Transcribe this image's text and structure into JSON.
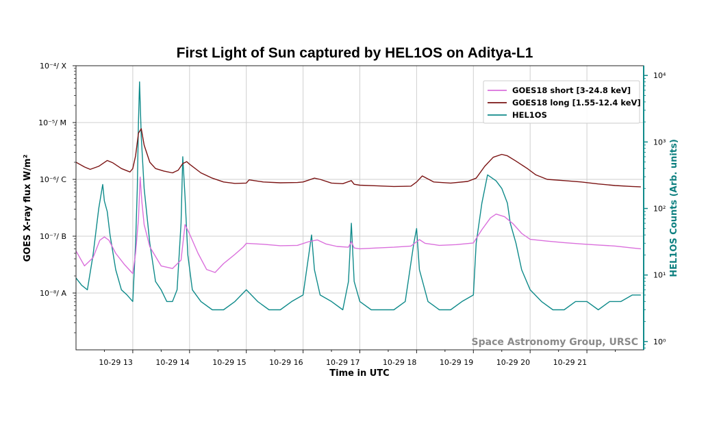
{
  "chart_data": {
    "type": "line",
    "title": "First Light of Sun captured by HEL1OS on Aditya-L1",
    "xlabel": "Time in UTC",
    "ylabel_left": "GOES X-ray flux W/m²",
    "ylabel_right": "HEL1OS Counts (Arb. units)",
    "xlim": [
      12.0,
      22.0
    ],
    "ylim_left": [
      1e-09,
      0.0001
    ],
    "ylim_right": [
      0.75,
      14000
    ],
    "x_scale": "linear",
    "y_scale_left": "log",
    "y_scale_right": "log",
    "grid": true,
    "legend_position": "top-right",
    "x_ticks": [
      {
        "value": 13,
        "label": "10-29 13"
      },
      {
        "value": 14,
        "label": "10-29 14"
      },
      {
        "value": 15,
        "label": "10-29 15"
      },
      {
        "value": 16,
        "label": "10-29 16"
      },
      {
        "value": 17,
        "label": "10-29 17"
      },
      {
        "value": 18,
        "label": "10-29 18"
      },
      {
        "value": 19,
        "label": "10-29 19"
      },
      {
        "value": 20,
        "label": "10-29 20"
      },
      {
        "value": 21,
        "label": "10-29 21"
      }
    ],
    "y_ticks_left": [
      {
        "value": 0.0001,
        "label": "10⁻⁴/ X"
      },
      {
        "value": 1e-05,
        "label": "10⁻⁵/ M"
      },
      {
        "value": 1e-06,
        "label": "10⁻⁶/ C"
      },
      {
        "value": 1e-07,
        "label": "10⁻⁷/ B"
      },
      {
        "value": 1e-08,
        "label": "10⁻⁸/ A"
      }
    ],
    "y_ticks_right": [
      {
        "value": 1,
        "label": "10⁰"
      },
      {
        "value": 10,
        "label": "10¹"
      },
      {
        "value": 100,
        "label": "10²"
      },
      {
        "value": 1000,
        "label": "10³"
      },
      {
        "value": 10000,
        "label": "10⁴"
      }
    ],
    "series": [
      {
        "name": "GOES18 short  [3-24.8 keV]",
        "axis": "left",
        "color": "#da6fdc",
        "x": [
          12.0,
          12.15,
          12.3,
          12.42,
          12.5,
          12.58,
          12.7,
          12.85,
          13.0,
          13.05,
          13.1,
          13.13,
          13.16,
          13.2,
          13.3,
          13.5,
          13.7,
          13.85,
          13.92,
          14.0,
          14.15,
          14.3,
          14.45,
          14.6,
          14.8,
          14.95,
          15.0,
          15.3,
          15.6,
          15.9,
          16.1,
          16.25,
          16.4,
          16.6,
          16.8,
          16.85,
          16.9,
          17.0,
          17.3,
          17.6,
          17.9,
          18.05,
          18.15,
          18.4,
          18.7,
          19.0,
          19.15,
          19.3,
          19.4,
          19.55,
          19.7,
          19.85,
          20.0,
          20.3,
          20.6,
          20.9,
          21.2,
          21.5,
          21.8,
          21.95
        ],
        "y": [
          5.5e-08,
          3e-08,
          4.2e-08,
          8.5e-08,
          9.7e-08,
          8.5e-08,
          5e-08,
          3.2e-08,
          2.2e-08,
          5e-08,
          2e-07,
          1.1e-06,
          4e-07,
          1.6e-07,
          6.5e-08,
          3e-08,
          2.7e-08,
          3.8e-08,
          1.6e-07,
          1.1e-07,
          5e-08,
          2.6e-08,
          2.3e-08,
          3.3e-08,
          4.8e-08,
          6.5e-08,
          7.5e-08,
          7.2e-08,
          6.8e-08,
          6.9e-08,
          8e-08,
          8.6e-08,
          7.3e-08,
          6.6e-08,
          6.4e-08,
          8e-08,
          6.2e-08,
          6e-08,
          6.2e-08,
          6.4e-08,
          6.7e-08,
          8.7e-08,
          7.5e-08,
          6.9e-08,
          7.1e-08,
          7.6e-08,
          1.3e-07,
          2.1e-07,
          2.45e-07,
          2.2e-07,
          1.65e-07,
          1.12e-07,
          8.8e-08,
          8.2e-08,
          7.7e-08,
          7.3e-08,
          7e-08,
          6.7e-08,
          6.2e-08,
          6e-08
        ]
      },
      {
        "name": "GOES18 long  [1.55-12.4 keV]",
        "axis": "left",
        "color": "#7a1212",
        "x": [
          12.0,
          12.15,
          12.25,
          12.4,
          12.55,
          12.65,
          12.8,
          12.95,
          13.0,
          13.05,
          13.1,
          13.15,
          13.2,
          13.3,
          13.4,
          13.55,
          13.7,
          13.8,
          13.88,
          13.95,
          14.0,
          14.2,
          14.4,
          14.6,
          14.8,
          15.0,
          15.05,
          15.3,
          15.6,
          15.9,
          16.0,
          16.2,
          16.3,
          16.5,
          16.7,
          16.85,
          16.9,
          17.0,
          17.3,
          17.6,
          17.9,
          18.0,
          18.1,
          18.3,
          18.6,
          18.9,
          19.05,
          19.2,
          19.35,
          19.5,
          19.6,
          19.75,
          19.95,
          20.1,
          20.3,
          20.6,
          20.9,
          21.2,
          21.5,
          21.8,
          21.95
        ],
        "y": [
          2e-06,
          1.65e-06,
          1.5e-06,
          1.7e-06,
          2.15e-06,
          1.95e-06,
          1.55e-06,
          1.35e-06,
          1.55e-06,
          2.6e-06,
          6.5e-06,
          7.8e-06,
          4e-06,
          2e-06,
          1.55e-06,
          1.4e-06,
          1.3e-06,
          1.45e-06,
          1.9e-06,
          2.05e-06,
          1.85e-06,
          1.3e-06,
          1.05e-06,
          9e-07,
          8.5e-07,
          8.6e-07,
          9.8e-07,
          9e-07,
          8.7e-07,
          8.8e-07,
          9e-07,
          1.05e-06,
          1e-06,
          8.6e-07,
          8.4e-07,
          9.5e-07,
          8.2e-07,
          7.9e-07,
          7.7e-07,
          7.5e-07,
          7.6e-07,
          9e-07,
          1.15e-06,
          9e-07,
          8.6e-07,
          9.2e-07,
          1.05e-06,
          1.7e-06,
          2.45e-06,
          2.75e-06,
          2.6e-06,
          2.1e-06,
          1.55e-06,
          1.2e-06,
          1e-06,
          9.5e-07,
          9e-07,
          8.3e-07,
          7.8e-07,
          7.5e-07,
          7.4e-07
        ]
      },
      {
        "name": "HEL1OS",
        "axis": "right",
        "color": "#0e8a8a",
        "x": [
          12.0,
          12.1,
          12.2,
          12.3,
          12.4,
          12.47,
          12.5,
          12.55,
          12.6,
          12.7,
          12.8,
          12.9,
          13.0,
          13.05,
          13.08,
          13.1,
          13.12,
          13.15,
          13.2,
          13.3,
          13.4,
          13.5,
          13.6,
          13.7,
          13.78,
          13.85,
          13.88,
          13.92,
          13.97,
          14.05,
          14.2,
          14.4,
          14.6,
          14.8,
          15.0,
          15.2,
          15.4,
          15.6,
          15.8,
          16.0,
          16.1,
          16.15,
          16.2,
          16.3,
          16.5,
          16.7,
          16.8,
          16.85,
          16.9,
          17.0,
          17.2,
          17.4,
          17.6,
          17.8,
          17.95,
          18.0,
          18.05,
          18.2,
          18.4,
          18.6,
          18.8,
          19.0,
          19.05,
          19.15,
          19.25,
          19.4,
          19.5,
          19.6,
          19.65,
          19.75,
          19.85,
          20.0,
          20.2,
          20.4,
          20.6,
          20.8,
          21.0,
          21.2,
          21.4,
          21.6,
          21.8,
          21.95
        ],
        "y": [
          9,
          7,
          6,
          20,
          100,
          230,
          130,
          90,
          40,
          12,
          6,
          5,
          4,
          30,
          200,
          2000,
          8000,
          1200,
          200,
          30,
          8,
          6,
          4,
          4,
          6,
          60,
          600,
          150,
          20,
          6,
          4,
          3,
          3,
          4,
          6,
          4,
          3,
          3,
          4,
          5,
          20,
          40,
          12,
          5,
          4,
          3,
          8,
          60,
          8,
          4,
          3,
          3,
          3,
          4,
          30,
          50,
          12,
          4,
          3,
          3,
          4,
          5,
          30,
          120,
          320,
          260,
          200,
          120,
          60,
          30,
          12,
          6,
          4,
          3,
          3,
          4,
          4,
          3,
          4,
          4,
          5,
          5
        ]
      }
    ],
    "annotations": [
      "Space Astronomy Group, URSC"
    ]
  }
}
